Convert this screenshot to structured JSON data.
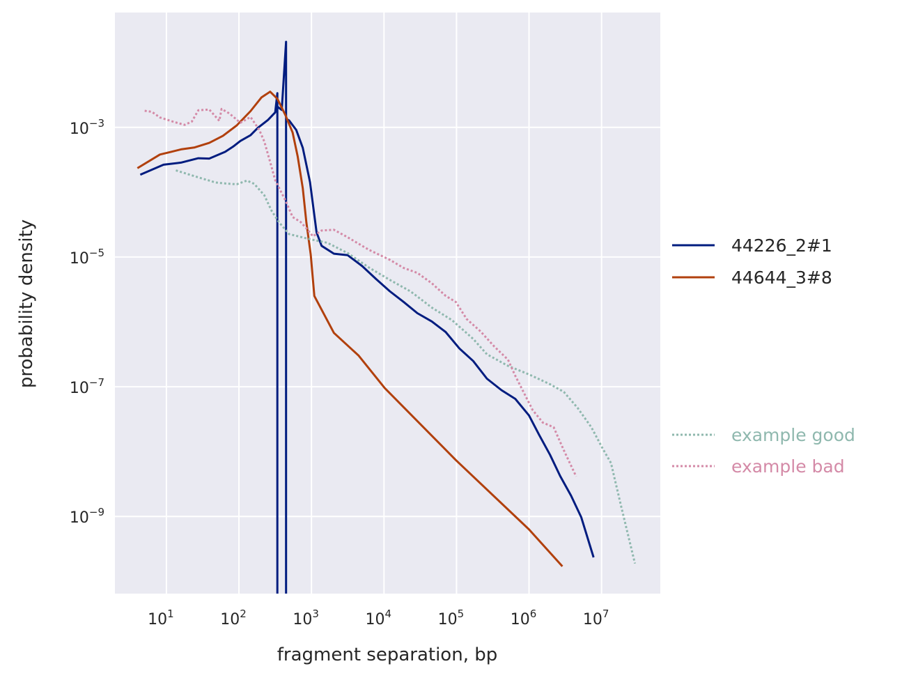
{
  "chart_data": {
    "type": "line",
    "xlabel": "fragment separation, bp",
    "ylabel": "probability density",
    "xscale": "log",
    "yscale": "log",
    "xlim_log10": [
      0.29,
      7.81
    ],
    "ylim_log10": [
      -10.19,
      -1.23
    ],
    "grid": true,
    "x_ticks": [
      {
        "base": "10",
        "exp": "1",
        "v": 1
      },
      {
        "base": "10",
        "exp": "2",
        "v": 2
      },
      {
        "base": "10",
        "exp": "3",
        "v": 3
      },
      {
        "base": "10",
        "exp": "4",
        "v": 4
      },
      {
        "base": "10",
        "exp": "5",
        "v": 5
      },
      {
        "base": "10",
        "exp": "6",
        "v": 6
      },
      {
        "base": "10",
        "exp": "7",
        "v": 7
      }
    ],
    "y_ticks": [
      {
        "base": "10",
        "exp": "−3",
        "v": -3
      },
      {
        "base": "10",
        "exp": "−5",
        "v": -5
      },
      {
        "base": "10",
        "exp": "−7",
        "v": -7
      },
      {
        "base": "10",
        "exp": "−9",
        "v": -9
      }
    ],
    "legend_placement": "right",
    "series": [
      {
        "name": "44226_2#1",
        "color": "#001c7f",
        "style": "solid",
        "x_log10": [
          0.64,
          0.96,
          1.2,
          1.44,
          1.59,
          1.81,
          1.92,
          2.02,
          2.16,
          2.26,
          2.4,
          2.5,
          2.53,
          2.53,
          2.53,
          2.59,
          2.65,
          2.65,
          2.65,
          2.69,
          2.79,
          2.88,
          2.98,
          3.07,
          3.14,
          3.31,
          3.5,
          3.7,
          3.89,
          4.08,
          4.27,
          4.46,
          4.66,
          4.85,
          5.04,
          5.23,
          5.42,
          5.62,
          5.81,
          6.0,
          6.14,
          6.29,
          6.43,
          6.58,
          6.72,
          6.89
        ],
        "y_log10": [
          -3.73,
          -3.61,
          -3.58,
          -3.48,
          -3.45,
          -3.34,
          -3.29,
          -3.24,
          -3.16,
          -3.02,
          -2.86,
          -2.73,
          -2.46,
          -11,
          -2.72,
          -2.75,
          -1.66,
          -11,
          -2.85,
          -2.91,
          -3.08,
          -3.34,
          -3.83,
          -4.58,
          -4.8,
          -4.96,
          -5.01,
          -5.17,
          -5.33,
          -5.49,
          -5.66,
          -5.87,
          -6.03,
          -6.19,
          -6.41,
          -6.57,
          -6.84,
          -7.05,
          -7.22,
          -7.48,
          -7.75,
          -8.02,
          -8.34,
          -8.67,
          -9.04,
          -9.67
        ]
      },
      {
        "name": "44644_3#8",
        "color": "#b1400d",
        "style": "solid",
        "x_log10": [
          0.6,
          0.91,
          1.06,
          1.2,
          1.39,
          1.59,
          1.78,
          1.97,
          2.16,
          2.31,
          2.43,
          2.53,
          2.64,
          2.74,
          2.81,
          2.88,
          2.93,
          2.99,
          3.04,
          3.31,
          3.65,
          4.01,
          4.99,
          6.0,
          6.46
        ],
        "y_log10": [
          -3.63,
          -3.42,
          -3.38,
          -3.34,
          -3.31,
          -3.24,
          -3.13,
          -2.97,
          -2.75,
          -2.54,
          -2.45,
          -2.56,
          -2.81,
          -3.08,
          -3.45,
          -3.94,
          -4.47,
          -4.96,
          -5.6,
          -6.17,
          -6.52,
          -7.02,
          -8.13,
          -9.2,
          -9.77
        ]
      },
      {
        "name": "example good",
        "color": "#8fb8ae",
        "style": "dotted",
        "x_log10": [
          1.13,
          1.39,
          1.68,
          1.83,
          1.97,
          2.11,
          2.21,
          2.35,
          2.45,
          2.55,
          2.69,
          2.84,
          3.0,
          3.22,
          3.5,
          3.79,
          4.08,
          4.37,
          4.66,
          4.94,
          5.23,
          5.42,
          5.71,
          6.0,
          6.29,
          6.48,
          6.67,
          6.86,
          7.01,
          7.13,
          7.27,
          7.46
        ],
        "y_log10": [
          -3.7,
          -3.76,
          -3.82,
          -3.83,
          -3.87,
          -3.85,
          -3.91,
          -4.06,
          -4.26,
          -4.42,
          -4.63,
          -4.71,
          -4.77,
          -4.8,
          -4.92,
          -5.12,
          -5.33,
          -5.55,
          -5.82,
          -6.0,
          -6.25,
          -6.46,
          -6.65,
          -6.82,
          -7.0,
          -7.11,
          -7.32,
          -7.59,
          -7.91,
          -8.18,
          -8.88,
          -9.76
        ]
      },
      {
        "name": "example bad",
        "color": "#d48aa7",
        "style": "dotted",
        "x_log10": [
          0.7,
          0.8,
          0.91,
          1.11,
          1.25,
          1.35,
          1.44,
          1.59,
          1.73,
          1.76,
          1.87,
          2.02,
          2.16,
          2.28,
          2.35,
          2.43,
          2.5,
          2.56,
          2.64,
          2.74,
          2.85,
          2.93,
          3.02,
          3.14,
          3.31,
          3.5,
          3.79,
          4.08,
          4.27,
          4.46,
          4.66,
          4.85,
          4.99,
          5.14,
          5.33,
          5.52,
          5.71,
          5.81,
          5.9,
          6.05,
          6.19,
          6.34,
          6.48,
          6.65
        ],
        "y_log10": [
          -2.75,
          -2.73,
          -2.81,
          -2.91,
          -2.99,
          -2.95,
          -2.75,
          -2.7,
          -2.86,
          -2.7,
          -2.81,
          -2.97,
          -2.86,
          -3.02,
          -3.18,
          -3.51,
          -3.83,
          -3.99,
          -4.15,
          -4.37,
          -4.42,
          -4.53,
          -4.69,
          -4.63,
          -4.61,
          -4.69,
          -4.85,
          -5.01,
          -5.17,
          -5.28,
          -5.44,
          -5.6,
          -5.66,
          -5.92,
          -6.14,
          -6.41,
          -6.62,
          -6.84,
          -7.0,
          -7.32,
          -7.54,
          -7.65,
          -8.02,
          -8.4
        ]
      }
    ]
  }
}
